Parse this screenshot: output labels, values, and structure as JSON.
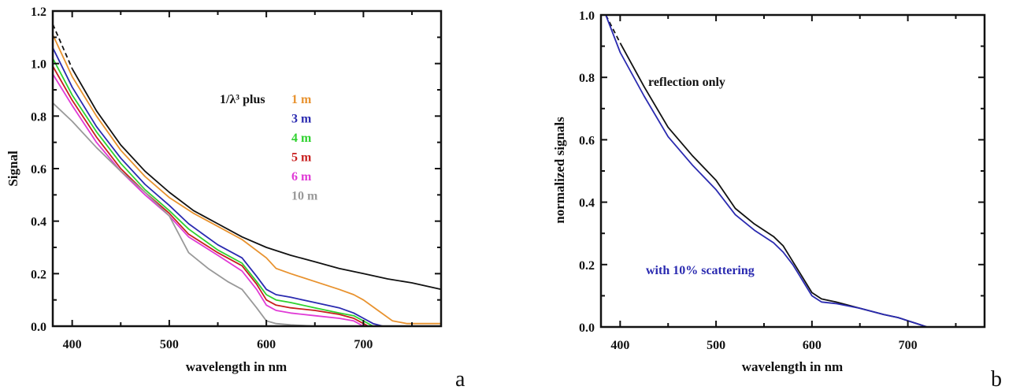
{
  "chart_data": [
    {
      "type": "line",
      "panel_label": "a",
      "title": "",
      "xlabel": "wavelength in nm",
      "ylabel": "Signal",
      "xlim": [
        380,
        780
      ],
      "ylim": [
        0.0,
        1.2
      ],
      "xticks": [
        400,
        500,
        600,
        700
      ],
      "xticks_minor": [
        450,
        550,
        650,
        750
      ],
      "yticks": [
        "0.0",
        "0.2",
        "0.4",
        "0.6",
        "0.8",
        "1.0",
        "1.2"
      ],
      "grid": false,
      "legend": {
        "placement": "top-center",
        "prefix": "1/λ³ plus",
        "entries": [
          "1 m",
          "3 m",
          "4 m",
          "5 m",
          "6 m",
          "10 m"
        ]
      },
      "series": [
        {
          "name": "1/λ³",
          "color": "#111111",
          "style": "solid-dashed-start",
          "x": [
            380,
            400,
            425,
            450,
            475,
            500,
            525,
            550,
            575,
            600,
            625,
            650,
            675,
            700,
            725,
            750,
            780
          ],
          "y": [
            1.15,
            0.98,
            0.82,
            0.69,
            0.59,
            0.51,
            0.44,
            0.39,
            0.34,
            0.3,
            0.27,
            0.245,
            0.22,
            0.2,
            0.18,
            0.165,
            0.14
          ]
        },
        {
          "name": "1 m",
          "color": "#e8922e",
          "x": [
            380,
            400,
            425,
            450,
            475,
            500,
            525,
            550,
            575,
            600,
            610,
            625,
            650,
            675,
            690,
            700,
            715,
            730,
            745,
            780
          ],
          "y": [
            1.11,
            0.95,
            0.8,
            0.67,
            0.57,
            0.49,
            0.43,
            0.38,
            0.33,
            0.26,
            0.22,
            0.2,
            0.17,
            0.14,
            0.12,
            0.1,
            0.06,
            0.02,
            0.01,
            0.01
          ]
        },
        {
          "name": "3 m",
          "color": "#2a2ab0",
          "x": [
            380,
            400,
            425,
            450,
            475,
            500,
            520,
            550,
            575,
            590,
            600,
            610,
            625,
            650,
            675,
            690,
            700,
            710,
            720
          ],
          "y": [
            1.06,
            0.91,
            0.76,
            0.64,
            0.54,
            0.46,
            0.39,
            0.31,
            0.26,
            0.19,
            0.14,
            0.12,
            0.11,
            0.09,
            0.07,
            0.05,
            0.03,
            0.01,
            0.0
          ]
        },
        {
          "name": "4 m",
          "color": "#2fd22f",
          "x": [
            380,
            400,
            425,
            450,
            475,
            500,
            520,
            550,
            575,
            590,
            600,
            610,
            625,
            650,
            675,
            690,
            700,
            710
          ],
          "y": [
            1.02,
            0.88,
            0.74,
            0.62,
            0.52,
            0.44,
            0.37,
            0.29,
            0.24,
            0.17,
            0.12,
            0.1,
            0.09,
            0.07,
            0.05,
            0.04,
            0.02,
            0.0
          ]
        },
        {
          "name": "5 m",
          "color": "#c81e1e",
          "x": [
            380,
            400,
            425,
            450,
            475,
            500,
            520,
            550,
            575,
            590,
            600,
            610,
            625,
            650,
            675,
            690,
            700,
            705
          ],
          "y": [
            0.99,
            0.86,
            0.72,
            0.6,
            0.51,
            0.43,
            0.35,
            0.28,
            0.23,
            0.16,
            0.1,
            0.08,
            0.07,
            0.06,
            0.045,
            0.03,
            0.01,
            0.0
          ]
        },
        {
          "name": "6 m",
          "color": "#e03ad6",
          "x": [
            380,
            400,
            425,
            450,
            475,
            500,
            520,
            550,
            575,
            590,
            600,
            610,
            625,
            650,
            675,
            690,
            700
          ],
          "y": [
            0.96,
            0.84,
            0.7,
            0.59,
            0.5,
            0.42,
            0.34,
            0.27,
            0.21,
            0.14,
            0.08,
            0.06,
            0.05,
            0.04,
            0.03,
            0.02,
            0.0
          ]
        },
        {
          "name": "10 m",
          "color": "#999999",
          "x": [
            380,
            400,
            425,
            450,
            475,
            500,
            520,
            540,
            560,
            575,
            590,
            600,
            610,
            625,
            650,
            675,
            690
          ],
          "y": [
            0.85,
            0.78,
            0.68,
            0.59,
            0.51,
            0.42,
            0.28,
            0.22,
            0.17,
            0.14,
            0.07,
            0.02,
            0.01,
            0.005,
            0.0,
            0.0,
            0.0
          ]
        }
      ]
    },
    {
      "type": "line",
      "panel_label": "b",
      "title": "",
      "xlabel": "wavelength in nm",
      "ylabel": "normalized signals",
      "xlim": [
        380,
        780
      ],
      "ylim": [
        0.0,
        1.0
      ],
      "xticks": [
        400,
        500,
        600,
        700
      ],
      "xticks_minor": [
        450,
        550,
        650,
        750
      ],
      "yticks": [
        "0.0",
        "0.2",
        "0.4",
        "0.6",
        "0.8",
        "1.0"
      ],
      "grid": false,
      "annotations": [
        {
          "text": "reflection only",
          "color": "#111111"
        },
        {
          "text": "with 10% scattering",
          "color": "#2a2ab0"
        }
      ],
      "series": [
        {
          "name": "reflection only",
          "color": "#111111",
          "style": "solid-dashed-start",
          "x": [
            385,
            400,
            425,
            450,
            475,
            500,
            520,
            540,
            560,
            570,
            580,
            590,
            600,
            610,
            625,
            650,
            675,
            690,
            700,
            710,
            720
          ],
          "y": [
            1.0,
            0.91,
            0.77,
            0.64,
            0.55,
            0.47,
            0.38,
            0.33,
            0.29,
            0.26,
            0.21,
            0.16,
            0.11,
            0.09,
            0.08,
            0.06,
            0.04,
            0.03,
            0.02,
            0.01,
            0.0
          ]
        },
        {
          "name": "with 10% scattering",
          "color": "#2a2ab0",
          "x": [
            385,
            400,
            425,
            450,
            475,
            500,
            520,
            540,
            560,
            570,
            580,
            590,
            600,
            610,
            625,
            650,
            675,
            690,
            700,
            710,
            720
          ],
          "y": [
            1.0,
            0.88,
            0.74,
            0.61,
            0.52,
            0.44,
            0.36,
            0.31,
            0.27,
            0.24,
            0.2,
            0.15,
            0.1,
            0.08,
            0.075,
            0.06,
            0.04,
            0.03,
            0.02,
            0.01,
            0.0
          ]
        }
      ]
    }
  ]
}
